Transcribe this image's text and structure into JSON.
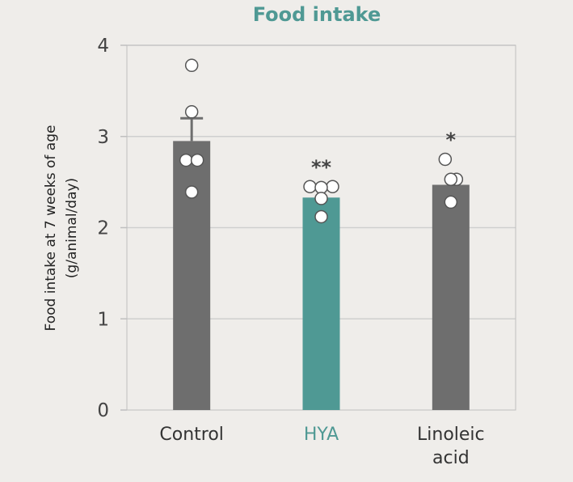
{
  "chart_data": {
    "type": "bar",
    "title": "Food intake",
    "ylabel_line1": "Food intake at 7 weeks of age",
    "ylabel_line2": "(g/animal/day)",
    "xlabel": "",
    "ylim": [
      0,
      4
    ],
    "yticks": [
      0,
      1,
      2,
      3,
      4
    ],
    "grid": true,
    "categories": [
      {
        "label_lines": [
          "Control"
        ],
        "value": 2.95,
        "error": 0.25,
        "color": "#6e6e6e",
        "label_color": "#333333",
        "significance": "",
        "points": [
          3.78,
          3.27,
          2.74,
          2.74,
          2.39
        ]
      },
      {
        "label_lines": [
          "HYA"
        ],
        "value": 2.33,
        "error": null,
        "color": "#4f9994",
        "label_color": "#4f9994",
        "significance": "**",
        "points": [
          2.45,
          2.45,
          2.44,
          2.32,
          2.12
        ]
      },
      {
        "label_lines": [
          "Linoleic",
          "acid"
        ],
        "value": 2.47,
        "error": null,
        "color": "#6e6e6e",
        "label_color": "#333333",
        "significance": "*",
        "points": [
          2.75,
          2.53,
          2.53,
          2.28
        ]
      }
    ],
    "colors": {
      "title": "#4f9994",
      "grid": "#cfcfcf",
      "axis": "#bfbfbf",
      "point_fill": "#ffffff",
      "point_stroke": "#555555"
    }
  }
}
